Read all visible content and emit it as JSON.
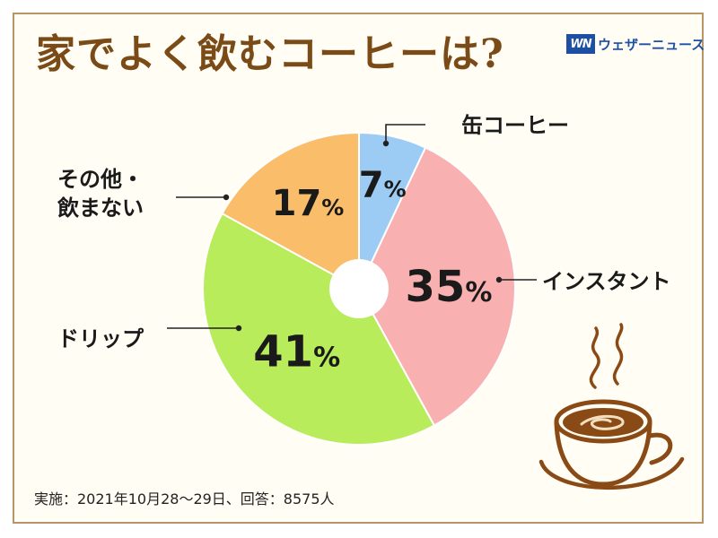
{
  "title": "家でよく飲むコーヒーは?",
  "logo": {
    "mark": "WN",
    "text": "ウェザーニュース",
    "color": "#1d4fa3"
  },
  "footnote": "実施：2021年10月28～29日、回答：8575人",
  "chart_data": {
    "type": "pie",
    "donut_hole": true,
    "start_angle_deg": 0,
    "direction": "clockwise",
    "unit": "%",
    "slices": [
      {
        "label": "缶コーヒー",
        "value": 7,
        "color": "#9ccbf4"
      },
      {
        "label": "インスタント",
        "value": 35,
        "color": "#f9b0b0"
      },
      {
        "label": "ドリップ",
        "value": 41,
        "color": "#b8ec5a"
      },
      {
        "label": "その他・飲まない",
        "label_lines": [
          "その他・",
          "飲まない"
        ],
        "value": 17,
        "color": "#fabd6a"
      }
    ]
  },
  "colors": {
    "title": "#7a4b17",
    "frame": "#b79567",
    "background": "#fffdf4",
    "coffee": "#8a4a16"
  },
  "decorative_icon": "coffee-cup-icon"
}
